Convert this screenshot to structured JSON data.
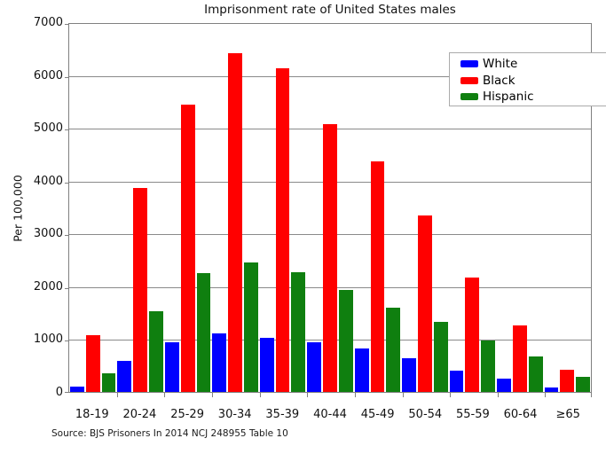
{
  "chart_data": {
    "type": "bar",
    "title": "Imprisonment rate of United States males",
    "ylabel": "Per 100,000",
    "xlabel": "",
    "source": "Source: BJS Prisoners In 2014 NCJ 248955 Table 10",
    "categories": [
      "18-19",
      "20-24",
      "25-29",
      "30-34",
      "35-39",
      "40-44",
      "45-49",
      "50-54",
      "55-59",
      "60-64",
      "≥65"
    ],
    "series": [
      {
        "name": "White",
        "color": "#0000ff",
        "values": [
          109,
          585,
          949,
          1111,
          1026,
          935,
          817,
          636,
          407,
          252,
          92
        ]
      },
      {
        "name": "Black",
        "color": "#ff0000",
        "values": [
          1072,
          3868,
          5434,
          6412,
          6122,
          5076,
          4357,
          3333,
          2173,
          1268,
          424
        ]
      },
      {
        "name": "Hispanic",
        "color": "#0f7f0f",
        "values": [
          349,
          1521,
          2245,
          2457,
          2272,
          1931,
          1595,
          1322,
          975,
          678,
          287
        ]
      }
    ],
    "ylim": [
      0,
      7000
    ],
    "yticks": [
      0,
      1000,
      2000,
      3000,
      4000,
      5000,
      6000,
      7000
    ],
    "grid": true,
    "legend_position": "top-right"
  },
  "colors": {
    "frame": "#808080",
    "grid": "#8a8a8a",
    "text": "#000000",
    "legend_border": "#ababab",
    "background": "#ffffff"
  }
}
